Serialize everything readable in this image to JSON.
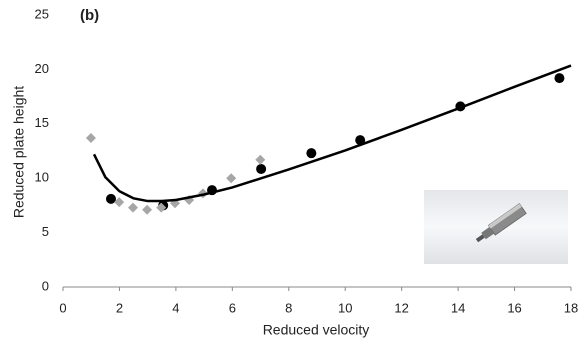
{
  "chart_data": {
    "type": "scatter",
    "annotation": "(b)",
    "x_label": "Reduced velocity",
    "y_label": "Reduced plate height",
    "xlim": [
      0,
      18
    ],
    "xticks": [
      0,
      2,
      4,
      6,
      8,
      10,
      12,
      14,
      16,
      18
    ],
    "ylim": [
      0,
      25
    ],
    "yticks": [
      0,
      5,
      10,
      15,
      20,
      25
    ],
    "grid": false,
    "series": [
      {
        "type": "scatter",
        "marker": "circle",
        "color": "#000000",
        "x": [
          1.7,
          3.55,
          5.28,
          7.02,
          8.8,
          10.53,
          14.08,
          17.59
        ],
        "values": [
          8.1,
          7.5,
          8.9,
          10.85,
          12.3,
          13.5,
          16.6,
          19.2
        ]
      },
      {
        "type": "scatter",
        "marker": "diamond",
        "color": "#a6a6a6",
        "x": [
          0.99,
          1.99,
          2.48,
          2.98,
          3.48,
          3.97,
          4.47,
          4.96,
          5.96,
          6.99
        ],
        "values": [
          13.7,
          7.8,
          7.3,
          7.1,
          7.3,
          7.7,
          8.0,
          8.6,
          10.0,
          11.7
        ]
      },
      {
        "type": "line",
        "color": "#000000",
        "x": [
          1.1,
          1.5,
          2,
          2.5,
          3,
          3.5,
          4,
          5,
          6,
          8,
          10,
          12,
          14,
          16,
          18
        ],
        "values": [
          12.2,
          10.1,
          8.8,
          8.15,
          7.9,
          7.9,
          8.0,
          8.5,
          9.15,
          10.8,
          12.55,
          14.45,
          16.4,
          18.4,
          20.35
        ]
      }
    ]
  }
}
